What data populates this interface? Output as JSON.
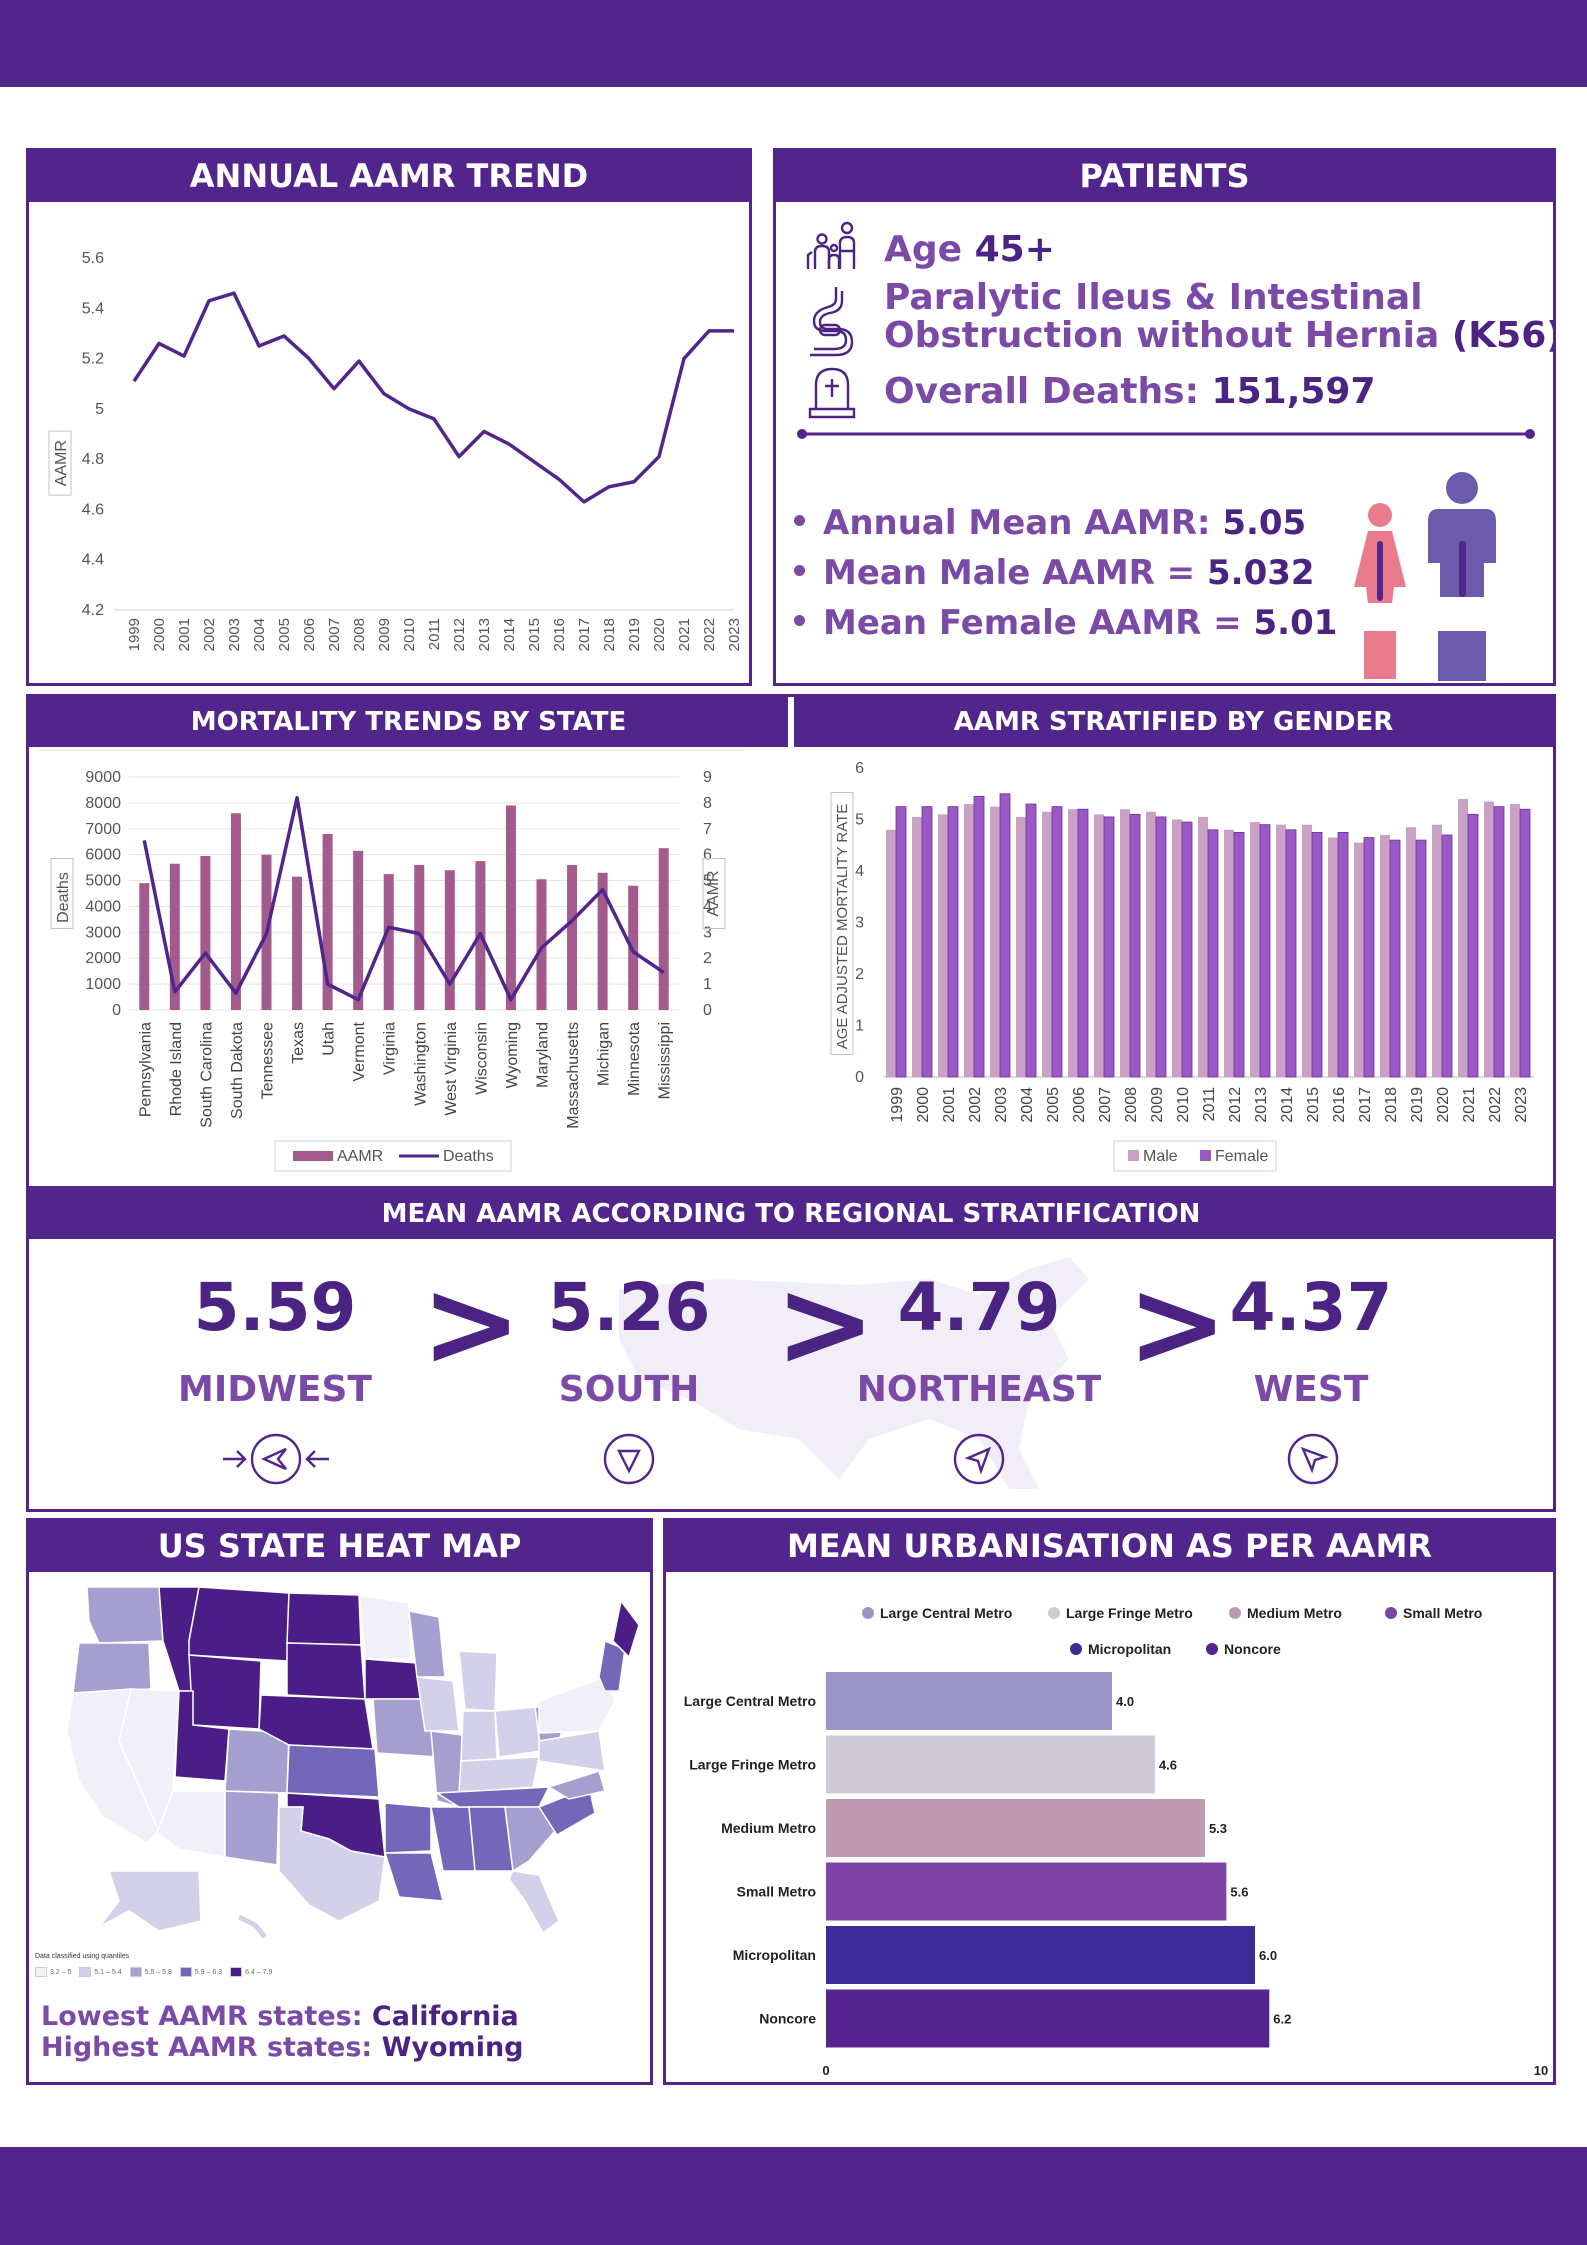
{
  "colors": {
    "primary": "#51258c",
    "accent": "#7a4aa6",
    "male": "#c9a2c3",
    "female": "#9b59c4",
    "aamr_bar": "#a35a8d",
    "female_icon": "#e97b8c",
    "male_icon": "#6c5bad"
  },
  "panels": {
    "annual_trend": "ANNUAL AAMR TREND",
    "patients": "PATIENTS",
    "mortality_state": "MORTALITY TRENDS BY STATE",
    "gender": "AAMR STRATIFIED BY GENDER",
    "regional": "MEAN AAMR ACCORDING TO REGIONAL STRATIFICATION",
    "heatmap": "US STATE HEAT MAP",
    "urban": "MEAN URBANISATION AS PER AAMR"
  },
  "patients": {
    "age_label": "Age ",
    "age_value": "45+",
    "diagnosis_line1": "Paralytic Ileus & Intestinal",
    "diagnosis_line2": "Obstruction without Hernia ",
    "diagnosis_code": "(K56)",
    "deaths_label": "Overall Deaths: ",
    "deaths_value": "151,597",
    "stat1_label": "Annual Mean AAMR: ",
    "stat1_value": "5.05",
    "stat2_label": "Mean Male AAMR = ",
    "stat2_value": "5.032",
    "stat3_label": "Mean Female AAMR = ",
    "stat3_value": "5.01",
    "icons": [
      "family-icon",
      "intestine-icon",
      "gravestone-icon",
      "female-figure-icon",
      "male-figure-icon"
    ]
  },
  "regions": [
    {
      "value": "5.59",
      "name": "MIDWEST",
      "icon": "compass-west-icon"
    },
    {
      "value": "5.26",
      "name": "SOUTH",
      "icon": "compass-south-icon"
    },
    {
      "value": "4.79",
      "name": "NORTHEAST",
      "icon": "compass-northeast-icon"
    },
    {
      "value": "4.37",
      "name": "WEST",
      "icon": "compass-west-icon"
    }
  ],
  "comparator": ">",
  "heatmap": {
    "legend_title": "Data classified using quantiles",
    "legend_items": [
      "3.2 – 5",
      "5.1 – 5.4",
      "5.5 – 5.8",
      "5.9 – 6.3",
      "6.4 – 7.9"
    ],
    "legend_colors": [
      "#f1eff8",
      "#d3d0ea",
      "#a59fd0",
      "#7466b8",
      "#4b1d86"
    ],
    "lowest_label": "Lowest AAMR states: ",
    "lowest_value": "California",
    "highest_label": "Highest AAMR states: ",
    "highest_value": "Wyoming"
  },
  "chart_data": [
    {
      "id": "annual",
      "type": "line",
      "title": "ANNUAL AAMR TREND",
      "xlabel": "",
      "ylabel": "AAMR",
      "ylim": [
        4.2,
        5.6
      ],
      "yticks": [
        "4.2",
        "4.4",
        "4.6",
        "4.8",
        "5",
        "5.2",
        "5.4",
        "5.6"
      ],
      "x": [
        "1999",
        "2000",
        "2001",
        "2002",
        "2003",
        "2004",
        "2005",
        "2006",
        "2007",
        "2008",
        "2009",
        "2010",
        "2011",
        "2012",
        "2013",
        "2014",
        "2015",
        "2016",
        "2017",
        "2018",
        "2019",
        "2020",
        "2021",
        "2022",
        "2023"
      ],
      "series": [
        {
          "values": [
            5.11,
            5.26,
            5.21,
            5.43,
            5.46,
            5.25,
            5.29,
            5.2,
            5.08,
            5.19,
            5.06,
            5.0,
            4.96,
            4.81,
            4.91,
            4.86,
            4.79,
            4.72,
            4.63,
            4.69,
            4.71,
            4.81,
            5.2,
            5.31,
            5.31
          ]
        }
      ]
    },
    {
      "id": "state",
      "type": "bar",
      "title": "MORTALITY TRENDS BY STATE",
      "ylabel_left": "Deaths",
      "ylabel_right": "AAMR",
      "ylim_left": [
        0,
        9000
      ],
      "ylim_right": [
        0,
        9
      ],
      "yticks_left": [
        "0",
        "1000",
        "2000",
        "3000",
        "4000",
        "5000",
        "6000",
        "7000",
        "8000",
        "9000"
      ],
      "yticks_right": [
        "0",
        "1",
        "2",
        "3",
        "4",
        "5",
        "6",
        "7",
        "8",
        "9"
      ],
      "categories": [
        "Pennsylvania",
        "Rhode Island",
        "South Carolina",
        "South Dakota",
        "Tennessee",
        "Texas",
        "Utah",
        "Vermont",
        "Virginia",
        "Washington",
        "West Virginia",
        "Wisconsin",
        "Wyoming",
        "Maryland",
        "Massachusetts",
        "Michigan",
        "Minnesota",
        "Mississippi"
      ],
      "series": [
        {
          "name": "AAMR",
          "type": "bar",
          "axis": "right",
          "values": [
            4.9,
            5.65,
            5.95,
            7.6,
            6.0,
            5.15,
            6.8,
            6.15,
            5.25,
            5.6,
            5.4,
            5.75,
            7.9,
            5.05,
            5.6,
            5.3,
            4.8,
            6.25
          ]
        },
        {
          "name": "Deaths",
          "type": "line",
          "axis": "left",
          "values": [
            6550,
            700,
            2200,
            650,
            2950,
            8200,
            1000,
            400,
            3200,
            2950,
            1000,
            2950,
            400,
            2400,
            3450,
            4650,
            2250,
            1450
          ]
        }
      ]
    },
    {
      "id": "gender",
      "type": "bar",
      "title": "AAMR STRATIFIED BY GENDER",
      "ylabel": "AGE ADJUSTED MORTALITY RATE",
      "ylim": [
        0,
        6
      ],
      "yticks": [
        "0",
        "1",
        "2",
        "3",
        "4",
        "5",
        "6"
      ],
      "categories": [
        "1999",
        "2000",
        "2001",
        "2002",
        "2003",
        "2004",
        "2005",
        "2006",
        "2007",
        "2008",
        "2009",
        "2010",
        "2011",
        "2012",
        "2013",
        "2014",
        "2015",
        "2016",
        "2017",
        "2018",
        "2019",
        "2020",
        "2021",
        "2022",
        "2023"
      ],
      "series": [
        {
          "name": "Male",
          "values": [
            4.8,
            5.05,
            5.1,
            5.3,
            5.25,
            5.05,
            5.15,
            5.2,
            5.1,
            5.2,
            5.15,
            5.0,
            5.05,
            4.8,
            4.95,
            4.9,
            4.9,
            4.65,
            4.55,
            4.7,
            4.85,
            4.9,
            5.4,
            5.35,
            5.3
          ]
        },
        {
          "name": "Female",
          "values": [
            5.25,
            5.25,
            5.25,
            5.45,
            5.5,
            5.3,
            5.25,
            5.2,
            5.05,
            5.1,
            5.05,
            4.95,
            4.8,
            4.75,
            4.9,
            4.8,
            4.75,
            4.75,
            4.65,
            4.6,
            4.6,
            4.7,
            5.1,
            5.25,
            5.2
          ]
        }
      ]
    },
    {
      "id": "urban",
      "type": "bar",
      "orientation": "horizontal",
      "title": "MEAN URBANISATION AS PER AAMR",
      "xlim": [
        0,
        10
      ],
      "xticks": [
        "0",
        "10"
      ],
      "categories": [
        "Large Central Metro",
        "Large Fringe Metro",
        "Medium Metro",
        "Small Metro",
        "Micropolitan",
        "Noncore"
      ],
      "values": [
        4.0,
        4.6,
        5.3,
        5.6,
        6.0,
        6.2
      ],
      "labels": [
        "4.0",
        "4.6",
        "5.3",
        "5.6",
        "6.0",
        "6.2"
      ],
      "colors": [
        "#9a95c8",
        "#cfc9d8",
        "#bf98b1",
        "#7f45a6",
        "#3d2b97",
        "#55248e"
      ]
    }
  ]
}
